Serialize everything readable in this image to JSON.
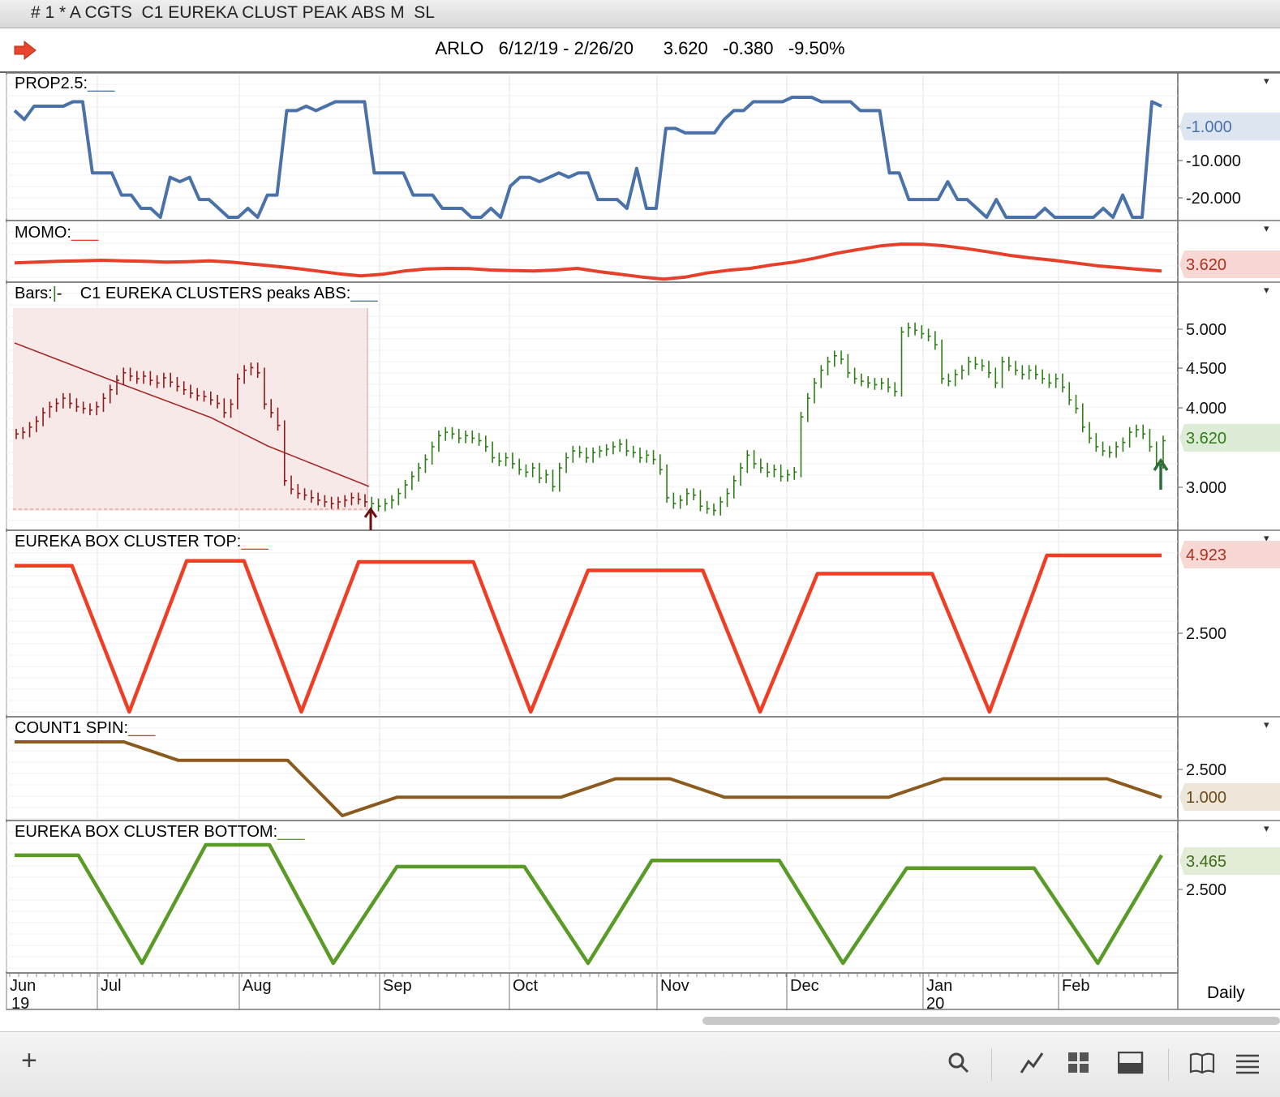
{
  "window_title": "# 1 * A CGTS  C1 EUREKA CLUST PEAK ABS M  SL",
  "header": {
    "symbol": "ARLO",
    "date_range": "6/12/19 - 2/26/20",
    "last": "3.620",
    "change": "-0.380",
    "change_pct": "-9.50%"
  },
  "colors": {
    "prop": "#4a72a8",
    "momo": "#e6402b",
    "bars_down": "#8b1a1a",
    "bars_up": "#2e7d17",
    "cluster_top": "#ef3e24",
    "count1": "#8a5a1f",
    "cluster_bottom": "#5a9a26"
  },
  "panels": [
    {
      "id": "prop",
      "label": "PROP2.5:",
      "value_tag": "-1.000",
      "ticks": [
        "-1.000",
        "-10.000",
        "-20.000"
      ]
    },
    {
      "id": "momo",
      "label": "MOMO:",
      "value_tag": "3.620",
      "ticks": []
    },
    {
      "id": "bars",
      "label": "Bars:",
      "label2": "C1 EUREKA CLUSTERS peaks ABS:",
      "value_tag": "3.620",
      "ticks": [
        "5.000",
        "4.500",
        "4.000",
        "3.000"
      ]
    },
    {
      "id": "ctop",
      "label": "EUREKA BOX CLUSTER TOP:",
      "value_tag": "4.923",
      "ticks": [
        "2.500"
      ]
    },
    {
      "id": "count",
      "label": "COUNT1 SPIN:",
      "value_tag": "1.000",
      "ticks": [
        "2.500"
      ]
    },
    {
      "id": "cbot",
      "label": "EUREKA BOX CLUSTER BOTTOM:",
      "value_tag": "3.465",
      "ticks": [
        "2.500"
      ]
    }
  ],
  "x_axis": {
    "months": [
      "Jun",
      "Jul",
      "Aug",
      "Sep",
      "Oct",
      "Nov",
      "Dec",
      "Jan",
      "Feb"
    ],
    "years": [
      "19",
      "20"
    ],
    "period": "Daily"
  },
  "chart_data": [
    {
      "type": "line",
      "title": "PROP2.5",
      "series": [
        {
          "name": "PROP2.5",
          "values": [
            -2,
            -4,
            -1,
            -1,
            -1,
            -1,
            0,
            0,
            -16,
            -16,
            -16,
            -21,
            -21,
            -24,
            -24,
            -26,
            -17,
            -18,
            -17,
            -22,
            -22,
            -24,
            -26,
            -26,
            -24,
            -26,
            -21,
            -21,
            -2,
            -2,
            -1,
            -2,
            -1,
            0,
            0,
            0,
            0,
            -16,
            -16,
            -16,
            -16,
            -21,
            -21,
            -21,
            -24,
            -24,
            -24,
            -26,
            -26,
            -24,
            -26,
            -19,
            -17,
            -17,
            -18,
            -17,
            -16,
            -17,
            -16,
            -16,
            -22,
            -22,
            -22,
            -24,
            -15,
            -24,
            -24,
            -6,
            -6,
            -7,
            -7,
            -7,
            -7,
            -4,
            -2,
            -2,
            0,
            0,
            0,
            0,
            1,
            1,
            1,
            0,
            0,
            0,
            0,
            -2,
            -2,
            -2,
            -16,
            -16,
            -22,
            -22,
            -22,
            -22,
            -18,
            -22,
            -22,
            -24,
            -26,
            -22,
            -26,
            -26,
            -26,
            -26,
            -24,
            -26,
            -26,
            -26,
            -26,
            -26,
            -24,
            -26,
            -21,
            -26,
            -26,
            0,
            -1
          ]
        }
      ]
    },
    {
      "type": "line",
      "title": "MOMO",
      "series": [
        {
          "name": "MOMO",
          "values": [
            3.92,
            3.95,
            3.98,
            4.0,
            4.02,
            4.0,
            3.98,
            3.95,
            3.97,
            4.0,
            3.95,
            3.88,
            3.8,
            3.72,
            3.62,
            3.52,
            3.44,
            3.5,
            3.62,
            3.7,
            3.72,
            3.71,
            3.66,
            3.64,
            3.62,
            3.66,
            3.72,
            3.6,
            3.5,
            3.4,
            3.32,
            3.4,
            3.55,
            3.65,
            3.72,
            3.85,
            3.95,
            4.1,
            4.28,
            4.42,
            4.55,
            4.62,
            4.61,
            4.55,
            4.45,
            4.33,
            4.2,
            4.1,
            4.02,
            3.92,
            3.82,
            3.75,
            3.68,
            3.62
          ]
        }
      ]
    },
    {
      "type": "bar",
      "title": "C1 EUREKA CLUSTERS peaks ABS",
      "note_x": "daily OHLC, Jun 12 2019 - Feb 26 2020",
      "series": [
        {
          "name": "Close",
          "values": [
            3.7,
            3.72,
            3.78,
            3.85,
            3.95,
            4.02,
            4.06,
            4.12,
            4.06,
            4.02,
            4.0,
            3.98,
            4.02,
            4.12,
            4.22,
            4.33,
            4.42,
            4.38,
            4.35,
            4.38,
            4.33,
            4.3,
            4.36,
            4.31,
            4.26,
            4.22,
            4.18,
            4.15,
            4.14,
            4.1,
            4.06,
            3.95,
            4.05,
            4.35,
            4.45,
            4.48,
            4.42,
            4.05,
            3.95,
            3.8,
            3.15,
            3.05,
            3.0,
            2.98,
            2.95,
            2.92,
            2.9,
            2.88,
            2.9,
            2.92,
            2.95,
            2.93,
            2.9,
            2.88,
            2.85,
            2.88,
            2.92,
            3.0,
            3.1,
            3.2,
            3.3,
            3.4,
            3.55,
            3.68,
            3.72,
            3.7,
            3.65,
            3.68,
            3.65,
            3.62,
            3.55,
            3.42,
            3.38,
            3.42,
            3.35,
            3.28,
            3.25,
            3.3,
            3.18,
            3.22,
            3.08,
            3.3,
            3.42,
            3.5,
            3.48,
            3.42,
            3.48,
            3.5,
            3.52,
            3.55,
            3.58,
            3.5,
            3.48,
            3.42,
            3.45,
            3.4,
            3.28,
            2.95,
            2.88,
            2.92,
            3.0,
            2.98,
            2.85,
            2.82,
            2.8,
            2.9,
            3.0,
            3.15,
            3.3,
            3.45,
            3.35,
            3.3,
            3.25,
            3.28,
            3.2,
            3.22,
            3.25,
            3.9,
            4.12,
            4.3,
            4.45,
            4.55,
            4.62,
            4.58,
            4.42,
            4.35,
            4.32,
            4.3,
            4.28,
            4.3,
            4.25,
            4.2,
            4.9,
            4.95,
            4.92,
            4.88,
            4.85,
            4.75,
            4.35,
            4.32,
            4.4,
            4.45,
            4.55,
            4.52,
            4.5,
            4.42,
            4.3,
            4.55,
            4.5,
            4.45,
            4.4,
            4.45,
            4.4,
            4.35,
            4.3,
            4.35,
            4.25,
            4.1,
            4.0,
            3.78,
            3.65,
            3.55,
            3.5,
            3.48,
            3.55,
            3.6,
            3.72,
            3.75,
            3.7,
            3.55,
            3.35,
            3.62
          ]
        }
      ],
      "ylim": [
        2.7,
        5.2
      ]
    },
    {
      "type": "line",
      "title": "EUREKA BOX CLUSTER TOP",
      "series": [
        {
          "name": "EUREKA BOX CLUSTER TOP",
          "values": [
            4.6,
            4.6,
            0,
            4.75,
            4.75,
            0,
            4.72,
            4.72,
            4.72,
            0,
            4.45,
            4.45,
            4.45,
            0,
            4.35,
            4.35,
            4.35,
            0,
            4.923,
            4.923,
            4.923
          ]
        }
      ]
    },
    {
      "type": "line",
      "title": "COUNT1 SPIN",
      "series": [
        {
          "name": "COUNT1 SPIN",
          "values": [
            4,
            4,
            4,
            3,
            3,
            3,
            0,
            1,
            1,
            1,
            1,
            2,
            2,
            1,
            1,
            1,
            1,
            2,
            2,
            2,
            2,
            1
          ]
        }
      ]
    },
    {
      "type": "line",
      "title": "EUREKA BOX CLUSTER BOTTOM",
      "series": [
        {
          "name": "EUREKA BOX CLUSTER BOTTOM",
          "values": [
            3.465,
            3.465,
            0,
            3.8,
            3.8,
            0,
            3.1,
            3.1,
            3.1,
            0,
            3.3,
            3.3,
            3.3,
            0,
            3.05,
            3.05,
            3.05,
            0,
            3.465
          ]
        }
      ]
    }
  ]
}
